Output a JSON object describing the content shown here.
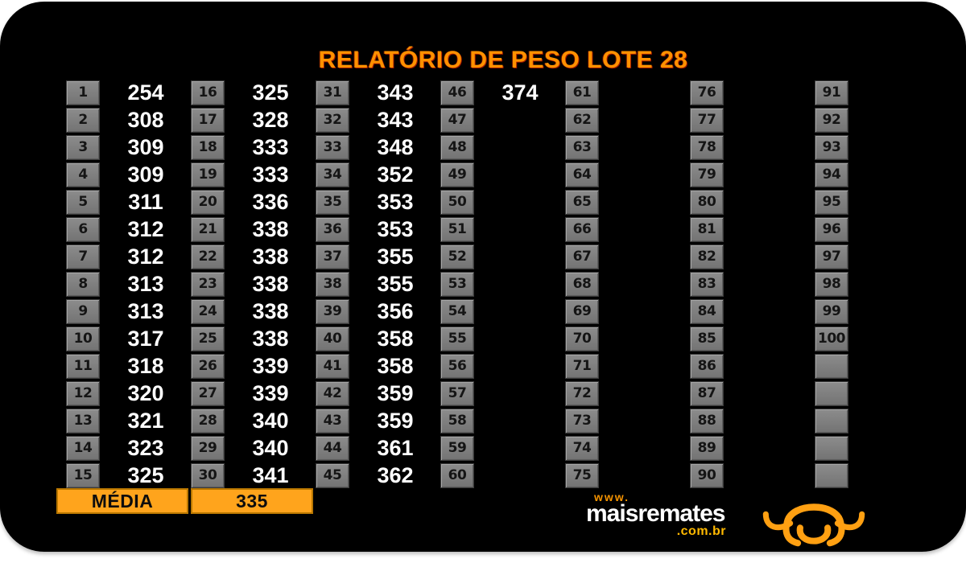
{
  "report": {
    "title": "RELATÓRIO DE PESO LOTE 28",
    "media_label": "MÉDIA",
    "media_value": "335",
    "columns": [
      {
        "cells": [
          {
            "n": "1",
            "w": "254"
          },
          {
            "n": "2",
            "w": "308"
          },
          {
            "n": "3",
            "w": "309"
          },
          {
            "n": "4",
            "w": "309"
          },
          {
            "n": "5",
            "w": "311"
          },
          {
            "n": "6",
            "w": "312"
          },
          {
            "n": "7",
            "w": "312"
          },
          {
            "n": "8",
            "w": "313"
          },
          {
            "n": "9",
            "w": "313"
          },
          {
            "n": "10",
            "w": "317"
          },
          {
            "n": "11",
            "w": "318"
          },
          {
            "n": "12",
            "w": "320"
          },
          {
            "n": "13",
            "w": "321"
          },
          {
            "n": "14",
            "w": "323"
          },
          {
            "n": "15",
            "w": "325"
          }
        ]
      },
      {
        "cells": [
          {
            "n": "16",
            "w": "325"
          },
          {
            "n": "17",
            "w": "328"
          },
          {
            "n": "18",
            "w": "333"
          },
          {
            "n": "19",
            "w": "333"
          },
          {
            "n": "20",
            "w": "336"
          },
          {
            "n": "21",
            "w": "338"
          },
          {
            "n": "22",
            "w": "338"
          },
          {
            "n": "23",
            "w": "338"
          },
          {
            "n": "24",
            "w": "338"
          },
          {
            "n": "25",
            "w": "338"
          },
          {
            "n": "26",
            "w": "339"
          },
          {
            "n": "27",
            "w": "339"
          },
          {
            "n": "28",
            "w": "340"
          },
          {
            "n": "29",
            "w": "340"
          },
          {
            "n": "30",
            "w": "341"
          }
        ]
      },
      {
        "cells": [
          {
            "n": "31",
            "w": "343"
          },
          {
            "n": "32",
            "w": "343"
          },
          {
            "n": "33",
            "w": "348"
          },
          {
            "n": "34",
            "w": "352"
          },
          {
            "n": "35",
            "w": "353"
          },
          {
            "n": "36",
            "w": "353"
          },
          {
            "n": "37",
            "w": "355"
          },
          {
            "n": "38",
            "w": "355"
          },
          {
            "n": "39",
            "w": "356"
          },
          {
            "n": "40",
            "w": "358"
          },
          {
            "n": "41",
            "w": "358"
          },
          {
            "n": "42",
            "w": "359"
          },
          {
            "n": "43",
            "w": "359"
          },
          {
            "n": "44",
            "w": "361"
          },
          {
            "n": "45",
            "w": "362"
          }
        ]
      },
      {
        "cells": [
          {
            "n": "46",
            "w": "374"
          },
          {
            "n": "47",
            "w": ""
          },
          {
            "n": "48",
            "w": ""
          },
          {
            "n": "49",
            "w": ""
          },
          {
            "n": "50",
            "w": ""
          },
          {
            "n": "51",
            "w": ""
          },
          {
            "n": "52",
            "w": ""
          },
          {
            "n": "53",
            "w": ""
          },
          {
            "n": "54",
            "w": ""
          },
          {
            "n": "55",
            "w": ""
          },
          {
            "n": "56",
            "w": ""
          },
          {
            "n": "57",
            "w": ""
          },
          {
            "n": "58",
            "w": ""
          },
          {
            "n": "59",
            "w": ""
          },
          {
            "n": "60",
            "w": ""
          }
        ]
      },
      {
        "cells": [
          {
            "n": "61",
            "w": ""
          },
          {
            "n": "62",
            "w": ""
          },
          {
            "n": "63",
            "w": ""
          },
          {
            "n": "64",
            "w": ""
          },
          {
            "n": "65",
            "w": ""
          },
          {
            "n": "66",
            "w": ""
          },
          {
            "n": "67",
            "w": ""
          },
          {
            "n": "68",
            "w": ""
          },
          {
            "n": "69",
            "w": ""
          },
          {
            "n": "70",
            "w": ""
          },
          {
            "n": "71",
            "w": ""
          },
          {
            "n": "72",
            "w": ""
          },
          {
            "n": "73",
            "w": ""
          },
          {
            "n": "74",
            "w": ""
          },
          {
            "n": "75",
            "w": ""
          }
        ]
      },
      {
        "cells": [
          {
            "n": "76",
            "w": ""
          },
          {
            "n": "77",
            "w": ""
          },
          {
            "n": "78",
            "w": ""
          },
          {
            "n": "79",
            "w": ""
          },
          {
            "n": "80",
            "w": ""
          },
          {
            "n": "81",
            "w": ""
          },
          {
            "n": "82",
            "w": ""
          },
          {
            "n": "83",
            "w": ""
          },
          {
            "n": "84",
            "w": ""
          },
          {
            "n": "85",
            "w": ""
          },
          {
            "n": "86",
            "w": ""
          },
          {
            "n": "87",
            "w": ""
          },
          {
            "n": "88",
            "w": ""
          },
          {
            "n": "89",
            "w": ""
          },
          {
            "n": "90",
            "w": ""
          }
        ]
      },
      {
        "cells": [
          {
            "n": "91",
            "w": ""
          },
          {
            "n": "92",
            "w": ""
          },
          {
            "n": "93",
            "w": ""
          },
          {
            "n": "94",
            "w": ""
          },
          {
            "n": "95",
            "w": ""
          },
          {
            "n": "96",
            "w": ""
          },
          {
            "n": "97",
            "w": ""
          },
          {
            "n": "98",
            "w": ""
          },
          {
            "n": "99",
            "w": ""
          },
          {
            "n": "100",
            "w": ""
          },
          {
            "n": "",
            "w": ""
          },
          {
            "n": "",
            "w": ""
          },
          {
            "n": "",
            "w": ""
          },
          {
            "n": "",
            "w": ""
          },
          {
            "n": "",
            "w": ""
          }
        ]
      }
    ]
  },
  "branding": {
    "www": "www.",
    "name": "maisremates",
    "tld": ".com.br",
    "bull_icon": "bull-head-icon"
  },
  "colors": {
    "panel_black": "#000000",
    "title_orange": "#FF9100",
    "media_orange": "#FFA41C",
    "media_border": "#B97700",
    "cell_gray": "#7d7d7d",
    "value_white": "#FFFFFF",
    "logo_orange": "#FFA012"
  }
}
